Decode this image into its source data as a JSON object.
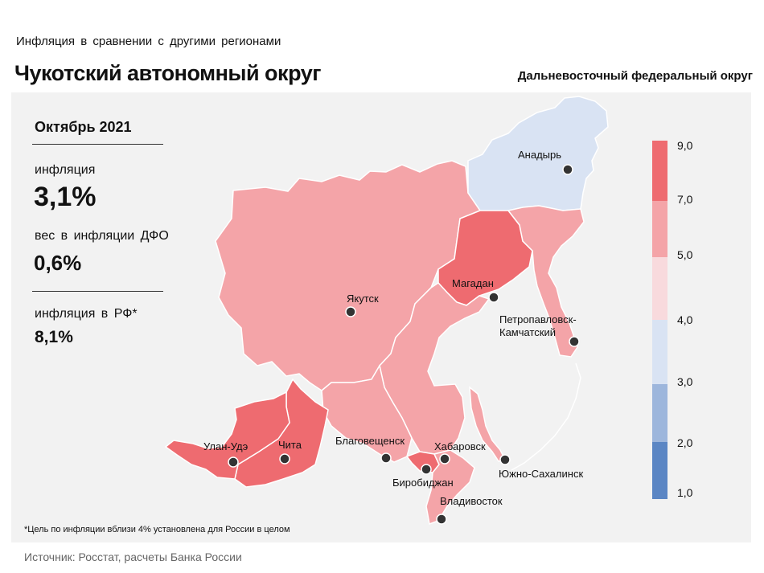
{
  "header": {
    "subtitle": "Инфляция в сравнении с другими регионами",
    "title": "Чукотский автономный округ",
    "district": "Дальневосточный федеральный округ"
  },
  "stats": {
    "period": "Октябрь 2021",
    "inflation_label": "инфляция",
    "inflation_value": "3,1%",
    "weight_label": "вес в инфляции ДФО",
    "weight_value": "0,6%",
    "russia_label": "инфляция в РФ*",
    "russia_value": "8,1%"
  },
  "legend": {
    "bins": [
      {
        "from": "1,0",
        "to": "2,0",
        "color": "#5b86c4"
      },
      {
        "from": "2,0",
        "to": "3,0",
        "color": "#9db6dc"
      },
      {
        "from": "3,0",
        "to": "4,0",
        "color": "#d9e3f3"
      },
      {
        "from": "4,0",
        "to": "5,0",
        "color": "#f8dadd"
      },
      {
        "from": "5,0",
        "to": "7,0",
        "color": "#f4a4a8"
      },
      {
        "from": "7,0",
        "to": "9,0",
        "color": "#ee6b70"
      }
    ],
    "ticks": [
      "1,0",
      "2,0",
      "3,0",
      "4,0",
      "5,0",
      "7,0",
      "9,0"
    ]
  },
  "map": {
    "regions": [
      {
        "name": "Якутия",
        "bin": "5,0–7,0",
        "color": "#f4a4a8"
      },
      {
        "name": "Чукотский автономный округ",
        "bin": "3,0–4,0",
        "color": "#d9e3f3"
      },
      {
        "name": "Магаданская область",
        "bin": "7,0–9,0",
        "color": "#ee6b70"
      },
      {
        "name": "Камчатский край",
        "bin": "5,0–7,0",
        "color": "#f4a4a8"
      },
      {
        "name": "Хабаровский край",
        "bin": "5,0–7,0",
        "color": "#f4a4a8"
      },
      {
        "name": "Амурская область",
        "bin": "5,0–7,0",
        "color": "#f4a4a8"
      },
      {
        "name": "Забайкальский край",
        "bin": "7,0–9,0",
        "color": "#ee6b70"
      },
      {
        "name": "Республика Бурятия",
        "bin": "7,0–9,0",
        "color": "#ee6b70"
      },
      {
        "name": "Еврейская автономная область",
        "bin": "7,0–9,0",
        "color": "#ee6b70"
      },
      {
        "name": "Приморский край",
        "bin": "5,0–7,0",
        "color": "#f4a4a8"
      },
      {
        "name": "Сахалинская область",
        "bin": "5,0–7,0",
        "color": "#f4a4a8"
      }
    ],
    "cities": {
      "anadyr": "Анадырь",
      "magadan": "Магадан",
      "yakutsk": "Якутск",
      "petropavlovsk_1": "Петропавловск-",
      "petropavlovsk_2": "Камчатский",
      "ulan_ude": "Улан-Удэ",
      "chita": "Чита",
      "blagoveshchensk": "Благовещенск",
      "khabarovsk": "Хабаровск",
      "birobidzhan": "Биробиджан",
      "yuzhno": "Южно-Сахалинск",
      "vladivostok": "Владивосток"
    }
  },
  "footnote": "*Цель по инфляции вблизи 4% установлена для России в целом",
  "source": "Источник: Росстат, расчеты Банка России"
}
